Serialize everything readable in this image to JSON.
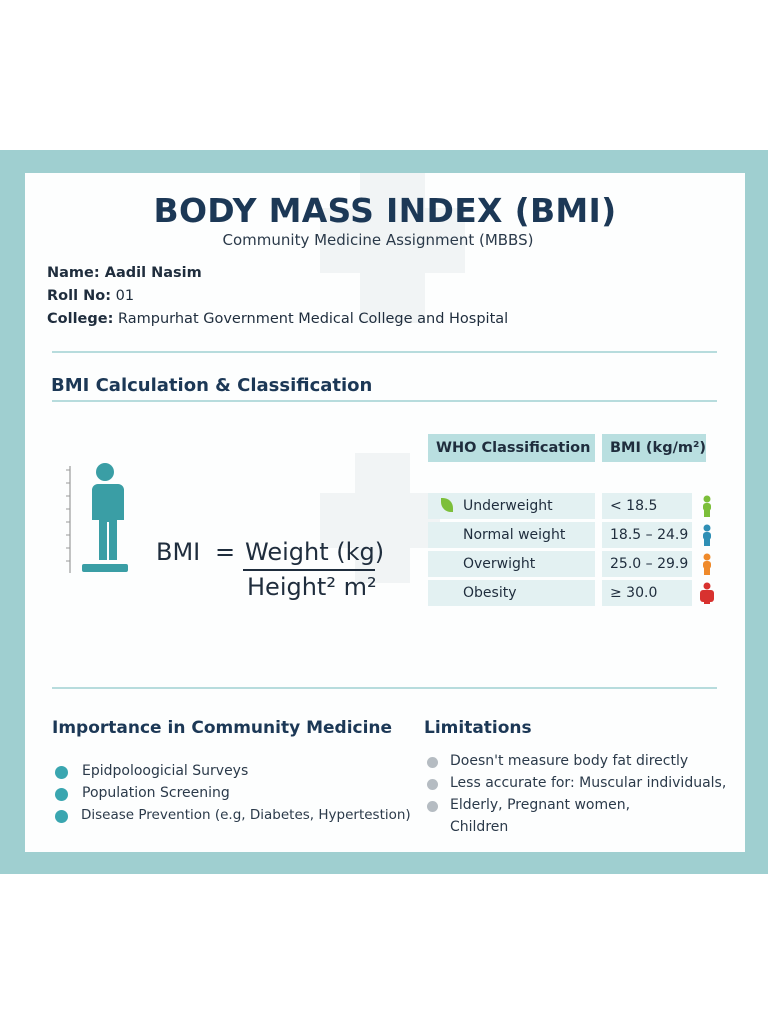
{
  "header": {
    "title": "BODY MASS INDEX (BMI)",
    "subtitle": "Community Medicine Assignment (MBBS)"
  },
  "student": [
    {
      "label": "Name:",
      "value": "Aadil Nasim"
    },
    {
      "label": "Roll No:",
      "value": "01"
    },
    {
      "label": "College:",
      "value": "Rampurhat Government Medical College and Hospital"
    }
  ],
  "calculation": {
    "heading": "BMI Calculation & Classification",
    "formula": {
      "lhs": "BMI",
      "equals": "=",
      "numerator": "Weight (kg)",
      "denominator": "Height² m²"
    },
    "table": {
      "headers": [
        "WHO Classification",
        "BMI (kg/m²)"
      ],
      "rows": [
        [
          "Underweight",
          "< 18.5"
        ],
        [
          "Normal weight",
          "18.5 – 24.9"
        ],
        [
          "Overwight",
          "25.0 – 29.9"
        ],
        [
          "Obesity",
          "≥ 30.0"
        ]
      ]
    }
  },
  "importance": {
    "heading": "Importance in Community Medicine",
    "items": [
      "Epidpoloogicial Surveys",
      "Population Screening",
      "Disease Prevention (e.g, Diabetes, Hypertestion)"
    ]
  },
  "limitations": {
    "heading": "Limitations",
    "lines": [
      "Doesn't measure body fat directly",
      "Less accurate for: Muscular individuals,",
      "Elderly, Pregnant women,",
      "Children"
    ]
  }
}
